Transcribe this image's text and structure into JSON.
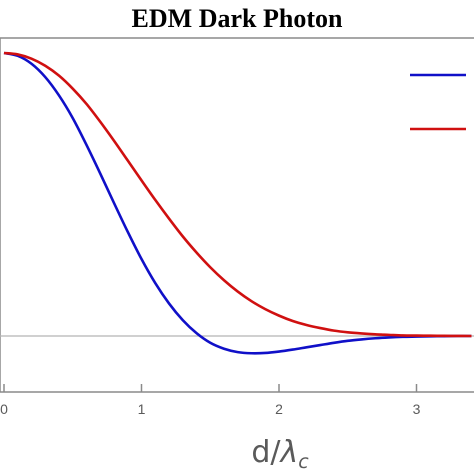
{
  "chart_data": {
    "type": "line",
    "title": "EDM Dark Photon",
    "xlabel": "d/",
    "xlabel_symbol": "λ",
    "xlabel_subscript": "c",
    "x_ticks": [
      "0",
      "1",
      "2",
      "3"
    ],
    "xlim": [
      0,
      3.4
    ],
    "ylim": [
      -0.08,
      1.0
    ],
    "baseline": 0,
    "grid": false,
    "legend": "top-right",
    "series": [
      {
        "color": "#1010c8",
        "x": [
          0,
          0.1,
          0.2,
          0.3,
          0.4,
          0.5,
          0.6,
          0.7,
          0.8,
          0.9,
          1.0,
          1.1,
          1.2,
          1.3,
          1.4,
          1.5,
          1.6,
          1.7,
          1.8,
          1.9,
          2.0,
          2.1,
          2.2,
          2.3,
          2.4,
          2.5,
          2.6,
          2.7,
          2.8,
          2.9,
          3.0,
          3.1,
          3.2,
          3.3,
          3.4
        ],
        "y": [
          1.0,
          0.99,
          0.962,
          0.915,
          0.85,
          0.77,
          0.675,
          0.574,
          0.47,
          0.368,
          0.272,
          0.187,
          0.115,
          0.056,
          0.01,
          -0.024,
          -0.045,
          -0.057,
          -0.061,
          -0.06,
          -0.055,
          -0.048,
          -0.04,
          -0.032,
          -0.024,
          -0.017,
          -0.012,
          -0.008,
          -0.005,
          -0.003,
          -0.002,
          -0.001,
          -0.0005,
          0.0,
          0.0
        ]
      },
      {
        "color": "#d01010",
        "x": [
          0,
          0.1,
          0.2,
          0.3,
          0.4,
          0.5,
          0.6,
          0.7,
          0.8,
          0.9,
          1.0,
          1.1,
          1.2,
          1.3,
          1.4,
          1.5,
          1.6,
          1.7,
          1.8,
          1.9,
          2.0,
          2.1,
          2.2,
          2.3,
          2.4,
          2.5,
          2.6,
          2.7,
          2.8,
          2.9,
          3.0,
          3.1,
          3.2,
          3.3,
          3.4
        ],
        "y": [
          1.0,
          0.995,
          0.98,
          0.955,
          0.92,
          0.874,
          0.82,
          0.757,
          0.69,
          0.62,
          0.55,
          0.481,
          0.415,
          0.352,
          0.295,
          0.243,
          0.197,
          0.157,
          0.123,
          0.095,
          0.072,
          0.053,
          0.039,
          0.028,
          0.019,
          0.013,
          0.009,
          0.006,
          0.004,
          0.002,
          0.0015,
          0.001,
          0.0005,
          0.0002,
          0.0
        ]
      }
    ]
  }
}
